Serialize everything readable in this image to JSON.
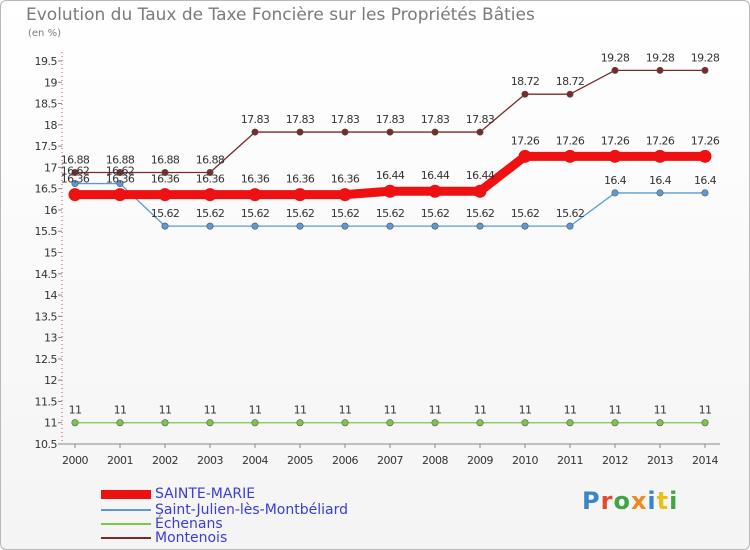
{
  "title": "Evolution du Taux de Taxe Foncière sur les Propriétés Bâties",
  "unit": "(en %)",
  "logo": {
    "text": "Proxiti",
    "letter_colors": [
      "#3a84c9",
      "#e14c2c",
      "#3fa545",
      "#ef8a1e",
      "#3a84c9",
      "#e6c21a",
      "#3fa545"
    ]
  },
  "chart_data": {
    "type": "line",
    "title": "Evolution du Taux de Taxe Foncière sur les Propriétés Bâties",
    "ylabel": "(en %)",
    "xlabel": "",
    "ylim": [
      10.5,
      19.5
    ],
    "yticks": [
      "10.5",
      "11",
      "11.5",
      "12",
      "12.5",
      "13",
      "13.5",
      "14",
      "14.5",
      "15",
      "15.5",
      "16",
      "16.5",
      "17",
      "17.5",
      "18",
      "18.5",
      "19",
      "19.5"
    ],
    "x": [
      "2000",
      "2001",
      "2002",
      "2003",
      "2004",
      "2005",
      "2006",
      "2007",
      "2008",
      "2009",
      "2010",
      "2011",
      "2012",
      "2013",
      "2014"
    ],
    "series": [
      {
        "name": "Montenois",
        "color": "#7a2a2a",
        "width": 1.3,
        "marker": 3.2,
        "values": [
          16.88,
          16.88,
          16.88,
          16.88,
          17.83,
          17.83,
          17.83,
          17.83,
          17.83,
          17.83,
          18.72,
          18.72,
          19.28,
          19.28,
          19.28
        ],
        "labels": [
          "16.88",
          "16.88",
          "16.88",
          "16.88",
          "17.83",
          "17.83",
          "17.83",
          "17.83",
          "17.83",
          "17.83",
          "18.72",
          "18.72",
          "19.28",
          "19.28",
          "19.28"
        ]
      },
      {
        "name": "Saint-Julien-lès-Montbéliard",
        "color": "#5b9bd5",
        "width": 1.3,
        "marker": 3.2,
        "values": [
          16.62,
          16.62,
          15.62,
          15.62,
          15.62,
          15.62,
          15.62,
          15.62,
          15.62,
          15.62,
          15.62,
          15.62,
          16.4,
          16.4,
          16.4
        ],
        "labels": [
          "16.62",
          "16.62",
          "15.62",
          "15.62",
          "15.62",
          "15.62",
          "15.62",
          "15.62",
          "15.62",
          "15.62",
          "15.62",
          "15.62",
          "16.4",
          "16.4",
          "16.4"
        ]
      },
      {
        "name": "Échenans",
        "color": "#7dc64a",
        "width": 1.3,
        "marker": 3.2,
        "values": [
          11,
          11,
          11,
          11,
          11,
          11,
          11,
          11,
          11,
          11,
          11,
          11,
          11,
          11,
          11
        ],
        "labels": [
          "11",
          "11",
          "11",
          "11",
          "11",
          "11",
          "11",
          "11",
          "11",
          "11",
          "11",
          "11",
          "11",
          "11",
          "11"
        ]
      },
      {
        "name": "SAINTE-MARIE",
        "color": "#ee1111",
        "width": 9,
        "marker": 6.5,
        "values": [
          16.36,
          16.36,
          16.36,
          16.36,
          16.36,
          16.36,
          16.36,
          16.44,
          16.44,
          16.44,
          17.26,
          17.26,
          17.26,
          17.26,
          17.26
        ],
        "labels": [
          "16.36",
          "16.36",
          "16.36",
          "16.36",
          "16.36",
          "16.36",
          "16.36",
          "16.44",
          "16.44",
          "16.44",
          "17.26",
          "17.26",
          "17.26",
          "17.26",
          "17.26"
        ]
      }
    ],
    "legend": [
      "SAINTE-MARIE",
      "Saint-Julien-lès-Montbéliard",
      "Échenans",
      "Montenois"
    ],
    "grid": false,
    "legend_position": "bottom-left"
  }
}
